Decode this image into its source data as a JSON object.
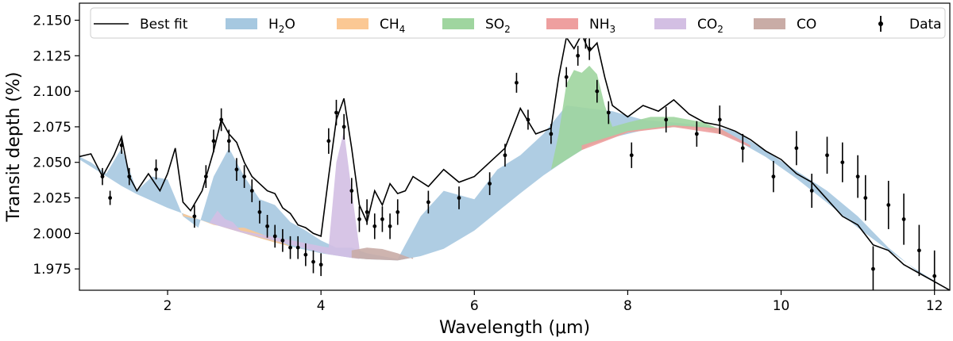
{
  "chart_data": {
    "type": "area",
    "xlabel": "Wavelength (μm)",
    "ylabel": "Transit depth (%)",
    "xlim": [
      0.85,
      12.2
    ],
    "ylim": [
      1.96,
      2.162
    ],
    "x_ticks": [
      2,
      4,
      6,
      8,
      10,
      12
    ],
    "y_ticks": [
      1.975,
      2.0,
      2.025,
      2.05,
      2.075,
      2.1,
      2.125,
      2.15
    ],
    "y_tick_labels": [
      "1.975",
      "2.000",
      "2.025",
      "2.050",
      "2.075",
      "2.100",
      "2.125",
      "2.150"
    ],
    "grid": false,
    "legend_position": "top",
    "legend": [
      {
        "key": "best_fit",
        "base": "Best fit",
        "sub": "",
        "type": "line",
        "color": "#000000"
      },
      {
        "key": "h2o",
        "base": "H",
        "sub": "2",
        "tail": "O",
        "type": "fill",
        "color": "#a6c8e0"
      },
      {
        "key": "ch4",
        "base": "CH",
        "sub": "4",
        "tail": "",
        "type": "fill",
        "color": "#fbc894"
      },
      {
        "key": "so2",
        "base": "SO",
        "sub": "2",
        "tail": "",
        "type": "fill",
        "color": "#9fd59f"
      },
      {
        "key": "nh3",
        "base": "NH",
        "sub": "3",
        "tail": "",
        "type": "fill",
        "color": "#ee9f9f"
      },
      {
        "key": "co2",
        "base": "CO",
        "sub": "2",
        "tail": "",
        "type": "fill",
        "color": "#d3bfe3"
      },
      {
        "key": "co",
        "base": "CO",
        "sub": "",
        "tail": "",
        "type": "fill",
        "color": "#c9aca6"
      },
      {
        "key": "data",
        "base": "Data",
        "sub": "",
        "tail": "",
        "type": "errorbar",
        "color": "#000000"
      }
    ],
    "baseline": {
      "x": [
        0.85,
        1.0,
        1.5,
        2.0,
        2.5,
        3.0,
        3.5,
        4.0,
        4.5,
        5.0,
        5.5,
        6.0,
        6.5,
        7.0,
        7.5,
        8.0,
        8.5,
        9.0,
        9.5,
        10.0,
        10.5,
        11.0,
        11.5,
        12.0,
        12.2
      ],
      "y": [
        2.052,
        2.047,
        2.03,
        2.018,
        2.008,
        2.0,
        1.992,
        1.986,
        1.982,
        1.981,
        1.986,
        2.002,
        2.024,
        2.045,
        2.062,
        2.071,
        2.075,
        2.074,
        2.064,
        2.047,
        2.026,
        2.004,
        1.984,
        1.966,
        1.96
      ]
    },
    "series": [
      {
        "name": "H2O",
        "x": [
          0.85,
          1.0,
          1.2,
          1.4,
          1.6,
          1.8,
          2.0,
          2.2,
          2.4,
          2.6,
          2.8,
          3.0,
          3.2,
          3.4,
          3.6,
          3.8,
          4.0,
          4.2,
          4.4,
          4.6,
          4.8,
          5.0,
          5.3,
          5.6,
          6.0,
          6.3,
          6.6,
          6.9,
          7.2,
          7.5,
          7.8,
          8.2,
          8.6,
          9.0,
          9.4,
          9.8,
          10.2,
          10.6,
          11.0,
          11.4,
          11.8,
          12.2
        ],
        "y": [
          2.054,
          2.05,
          2.042,
          2.06,
          2.03,
          2.04,
          2.038,
          2.012,
          2.004,
          2.04,
          2.06,
          2.04,
          2.024,
          2.02,
          2.008,
          2.002,
          1.995,
          1.99,
          1.99,
          1.986,
          1.984,
          1.982,
          2.012,
          2.03,
          2.024,
          2.045,
          2.055,
          2.07,
          2.09,
          2.088,
          2.086,
          2.08,
          2.078,
          2.076,
          2.072,
          2.058,
          2.044,
          2.03,
          2.012,
          1.99,
          1.972,
          1.96
        ]
      },
      {
        "name": "CH4",
        "x": [
          2.2,
          2.4,
          2.6,
          2.8,
          3.0,
          3.2,
          3.4,
          3.6
        ],
        "y": [
          2.012,
          2.01,
          2.006,
          2.004,
          2.004,
          2.0,
          1.996,
          1.991
        ]
      },
      {
        "name": "SO2",
        "x": [
          7.0,
          7.1,
          7.2,
          7.3,
          7.4,
          7.5,
          7.6,
          7.7,
          7.8,
          8.0,
          8.3,
          8.6,
          9.0,
          9.3
        ],
        "y": [
          2.045,
          2.07,
          2.105,
          2.115,
          2.113,
          2.118,
          2.112,
          2.09,
          2.075,
          2.078,
          2.082,
          2.082,
          2.078,
          2.071
        ]
      },
      {
        "name": "NH3",
        "x": [
          7.4,
          8.0,
          8.6,
          9.2,
          9.6
        ],
        "y": [
          2.062,
          2.072,
          2.076,
          2.074,
          2.062
        ]
      },
      {
        "name": "CO2",
        "x": [
          2.55,
          2.65,
          2.75,
          2.85,
          2.95,
          4.1,
          4.2,
          4.3,
          4.4,
          4.5
        ],
        "y": [
          2.008,
          2.016,
          2.01,
          2.008,
          2.002,
          1.99,
          2.05,
          2.072,
          2.03,
          1.99
        ]
      },
      {
        "name": "CO",
        "x": [
          4.4,
          4.6,
          4.8,
          5.0,
          5.2
        ],
        "y": [
          1.988,
          1.99,
          1.989,
          1.986,
          1.982
        ]
      },
      {
        "name": "Best fit",
        "x": [
          0.85,
          1.0,
          1.15,
          1.3,
          1.4,
          1.5,
          1.6,
          1.75,
          1.9,
          2.0,
          2.1,
          2.2,
          2.3,
          2.45,
          2.6,
          2.7,
          2.8,
          2.9,
          3.0,
          3.1,
          3.2,
          3.3,
          3.4,
          3.5,
          3.6,
          3.7,
          3.8,
          3.9,
          4.0,
          4.1,
          4.2,
          4.3,
          4.4,
          4.5,
          4.6,
          4.7,
          4.8,
          4.9,
          5.0,
          5.1,
          5.2,
          5.4,
          5.6,
          5.8,
          6.0,
          6.2,
          6.4,
          6.6,
          6.8,
          7.0,
          7.1,
          7.2,
          7.3,
          7.4,
          7.5,
          7.6,
          7.7,
          7.8,
          8.0,
          8.2,
          8.4,
          8.6,
          8.8,
          9.0,
          9.2,
          9.4,
          9.6,
          9.8,
          10.0,
          10.2,
          10.4,
          10.6,
          10.8,
          11.0,
          11.2,
          11.4,
          11.6,
          11.8,
          12.0,
          12.2
        ],
        "y": [
          2.054,
          2.056,
          2.04,
          2.055,
          2.068,
          2.04,
          2.03,
          2.042,
          2.03,
          2.042,
          2.06,
          2.022,
          2.016,
          2.03,
          2.058,
          2.08,
          2.07,
          2.064,
          2.05,
          2.04,
          2.035,
          2.03,
          2.028,
          2.018,
          2.014,
          2.006,
          2.004,
          2.0,
          1.998,
          2.04,
          2.08,
          2.095,
          2.06,
          2.02,
          2.008,
          2.03,
          2.02,
          2.035,
          2.028,
          2.03,
          2.04,
          2.033,
          2.045,
          2.036,
          2.04,
          2.05,
          2.06,
          2.088,
          2.07,
          2.074,
          2.11,
          2.138,
          2.13,
          2.14,
          2.128,
          2.134,
          2.11,
          2.09,
          2.082,
          2.09,
          2.086,
          2.094,
          2.084,
          2.078,
          2.076,
          2.072,
          2.066,
          2.058,
          2.052,
          2.042,
          2.036,
          2.024,
          2.012,
          2.006,
          1.992,
          1.988,
          1.978,
          1.972,
          1.966,
          1.96
        ]
      },
      {
        "name": "Data",
        "x": [
          1.15,
          1.25,
          1.4,
          1.5,
          1.85,
          2.35,
          2.5,
          2.6,
          2.7,
          2.8,
          2.9,
          3.0,
          3.1,
          3.2,
          3.3,
          3.4,
          3.5,
          3.6,
          3.7,
          3.8,
          3.9,
          4.0,
          4.1,
          4.2,
          4.3,
          4.4,
          4.5,
          4.6,
          4.7,
          4.8,
          4.9,
          5.0,
          5.4,
          5.8,
          6.2,
          6.4,
          6.55,
          6.7,
          7.0,
          7.2,
          7.35,
          7.45,
          7.5,
          7.6,
          7.75,
          8.05,
          8.5,
          8.9,
          9.2,
          9.5,
          9.9,
          10.2,
          10.4,
          10.6,
          10.8,
          11.0,
          11.1,
          11.2,
          11.4,
          11.6,
          11.8,
          12.0
        ],
        "y": [
          2.04,
          2.025,
          2.062,
          2.04,
          2.045,
          2.012,
          2.04,
          2.065,
          2.08,
          2.065,
          2.045,
          2.04,
          2.03,
          2.015,
          2.005,
          1.998,
          1.995,
          1.99,
          1.99,
          1.985,
          1.98,
          1.978,
          2.065,
          2.085,
          2.075,
          2.03,
          2.01,
          2.015,
          2.005,
          2.01,
          2.005,
          2.015,
          2.022,
          2.025,
          2.035,
          2.055,
          2.106,
          2.08,
          2.07,
          2.11,
          2.125,
          2.138,
          2.13,
          2.1,
          2.085,
          2.055,
          2.08,
          2.07,
          2.08,
          2.06,
          2.04,
          2.06,
          2.03,
          2.055,
          2.05,
          2.04,
          2.025,
          1.975,
          2.02,
          2.01,
          1.988,
          1.97
        ],
        "err": [
          0.006,
          0.005,
          0.006,
          0.006,
          0.007,
          0.008,
          0.008,
          0.008,
          0.008,
          0.008,
          0.008,
          0.008,
          0.008,
          0.008,
          0.008,
          0.008,
          0.008,
          0.008,
          0.008,
          0.008,
          0.008,
          0.008,
          0.009,
          0.009,
          0.009,
          0.009,
          0.009,
          0.009,
          0.009,
          0.009,
          0.009,
          0.009,
          0.008,
          0.008,
          0.008,
          0.008,
          0.007,
          0.007,
          0.007,
          0.007,
          0.007,
          0.008,
          0.008,
          0.008,
          0.008,
          0.009,
          0.009,
          0.009,
          0.01,
          0.01,
          0.011,
          0.012,
          0.012,
          0.013,
          0.014,
          0.015,
          0.016,
          0.016,
          0.017,
          0.018,
          0.018,
          0.018
        ]
      }
    ]
  }
}
